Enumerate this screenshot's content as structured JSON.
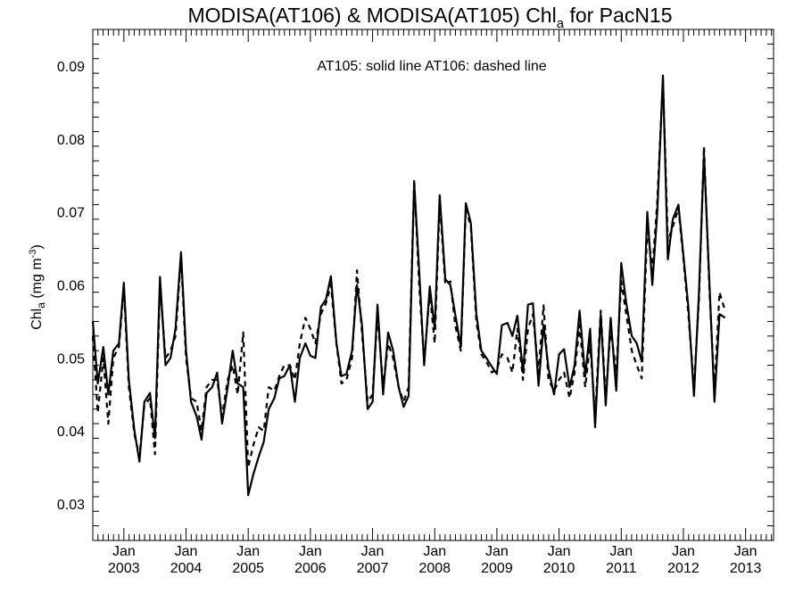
{
  "chart_data": {
    "type": "line",
    "title": {
      "main": "MODISA(AT106) & MODISA(AT105)  Chl",
      "subscript": "a",
      "suffix": " for PacN15"
    },
    "annotation": "AT105: solid line   AT106: dashed line",
    "ylabel": {
      "base": "Chl",
      "subscript": "a",
      "unit": " (mg m",
      "superscript": "-3",
      "close": ")"
    },
    "xlabel": "",
    "xlim": [
      2002.5,
      2013.45
    ],
    "ylim": [
      0.025,
      0.095
    ],
    "y_ticks": [
      "0.03",
      "0.04",
      "0.05",
      "0.06",
      "0.07",
      "0.08",
      "0.09"
    ],
    "x_ticks": [
      {
        "month": "Jan",
        "year": "2003",
        "x": 2003
      },
      {
        "month": "Jan",
        "year": "2004",
        "x": 2004
      },
      {
        "month": "Jan",
        "year": "2005",
        "x": 2005
      },
      {
        "month": "Jan",
        "year": "2006",
        "x": 2006
      },
      {
        "month": "Jan",
        "year": "2007",
        "x": 2007
      },
      {
        "month": "Jan",
        "year": "2008",
        "x": 2008
      },
      {
        "month": "Jan",
        "year": "2009",
        "x": 2009
      },
      {
        "month": "Jan",
        "year": "2010",
        "x": 2010
      },
      {
        "month": "Jan",
        "year": "2011",
        "x": 2011
      },
      {
        "month": "Jan",
        "year": "2012",
        "x": 2012
      },
      {
        "month": "Jan",
        "year": "2013",
        "x": 2013
      }
    ],
    "grid": false,
    "series": [
      {
        "name": "AT105",
        "style": "solid",
        "color": "#000000",
        "points": [
          [
            2002.5,
            0.055
          ],
          [
            2002.58,
            0.0465
          ],
          [
            2002.67,
            0.0515
          ],
          [
            2002.75,
            0.045
          ],
          [
            2002.83,
            0.051
          ],
          [
            2002.92,
            0.052
          ],
          [
            2003.0,
            0.0603
          ],
          [
            2003.08,
            0.047
          ],
          [
            2003.17,
            0.04
          ],
          [
            2003.25,
            0.0358
          ],
          [
            2003.33,
            0.044
          ],
          [
            2003.42,
            0.0452
          ],
          [
            2003.5,
            0.039
          ],
          [
            2003.58,
            0.0611
          ],
          [
            2003.67,
            0.049
          ],
          [
            2003.75,
            0.05
          ],
          [
            2003.83,
            0.054
          ],
          [
            2003.92,
            0.0645
          ],
          [
            2004.0,
            0.051
          ],
          [
            2004.08,
            0.044
          ],
          [
            2004.17,
            0.042
          ],
          [
            2004.25,
            0.0388
          ],
          [
            2004.33,
            0.0452
          ],
          [
            2004.42,
            0.046
          ],
          [
            2004.5,
            0.048
          ],
          [
            2004.58,
            0.041
          ],
          [
            2004.67,
            0.046
          ],
          [
            2004.75,
            0.051
          ],
          [
            2004.83,
            0.0465
          ],
          [
            2004.92,
            0.046
          ],
          [
            2005.0,
            0.0312
          ],
          [
            2005.08,
            0.034
          ],
          [
            2005.17,
            0.0365
          ],
          [
            2005.25,
            0.0385
          ],
          [
            2005.33,
            0.043
          ],
          [
            2005.42,
            0.0445
          ],
          [
            2005.5,
            0.0472
          ],
          [
            2005.58,
            0.0475
          ],
          [
            2005.67,
            0.049
          ],
          [
            2005.75,
            0.044
          ],
          [
            2005.83,
            0.05
          ],
          [
            2005.92,
            0.052
          ],
          [
            2006.0,
            0.0503
          ],
          [
            2006.08,
            0.05
          ],
          [
            2006.17,
            0.057
          ],
          [
            2006.25,
            0.058
          ],
          [
            2006.33,
            0.0612
          ],
          [
            2006.42,
            0.052
          ],
          [
            2006.5,
            0.0475
          ],
          [
            2006.58,
            0.0478
          ],
          [
            2006.67,
            0.051
          ],
          [
            2006.75,
            0.06
          ],
          [
            2006.83,
            0.0545
          ],
          [
            2006.92,
            0.043
          ],
          [
            2007.0,
            0.044
          ],
          [
            2007.08,
            0.0573
          ],
          [
            2007.17,
            0.045
          ],
          [
            2007.25,
            0.0535
          ],
          [
            2007.33,
            0.051
          ],
          [
            2007.42,
            0.046
          ],
          [
            2007.5,
            0.0433
          ],
          [
            2007.58,
            0.0448
          ],
          [
            2007.67,
            0.074
          ],
          [
            2007.75,
            0.062
          ],
          [
            2007.83,
            0.049
          ],
          [
            2007.92,
            0.0598
          ],
          [
            2008.0,
            0.054
          ],
          [
            2008.08,
            0.0723
          ],
          [
            2008.17,
            0.0608
          ],
          [
            2008.25,
            0.06
          ],
          [
            2008.33,
            0.056
          ],
          [
            2008.42,
            0.0515
          ],
          [
            2008.5,
            0.0712
          ],
          [
            2008.58,
            0.0685
          ],
          [
            2008.67,
            0.056
          ],
          [
            2008.75,
            0.051
          ],
          [
            2008.83,
            0.05
          ],
          [
            2008.92,
            0.0488
          ],
          [
            2009.0,
            0.0478
          ],
          [
            2009.08,
            0.0545
          ],
          [
            2009.17,
            0.0548
          ],
          [
            2009.25,
            0.053
          ],
          [
            2009.33,
            0.0558
          ],
          [
            2009.42,
            0.048
          ],
          [
            2009.5,
            0.0573
          ],
          [
            2009.58,
            0.0575
          ],
          [
            2009.67,
            0.0462
          ],
          [
            2009.75,
            0.0545
          ],
          [
            2009.83,
            0.0485
          ],
          [
            2009.92,
            0.045
          ],
          [
            2010.0,
            0.0505
          ],
          [
            2010.08,
            0.0512
          ],
          [
            2010.17,
            0.046
          ],
          [
            2010.25,
            0.049
          ],
          [
            2010.33,
            0.0565
          ],
          [
            2010.42,
            0.0475
          ],
          [
            2010.5,
            0.054
          ],
          [
            2010.58,
            0.0405
          ],
          [
            2010.67,
            0.056
          ],
          [
            2010.75,
            0.0435
          ],
          [
            2010.83,
            0.0555
          ],
          [
            2010.92,
            0.0455
          ],
          [
            2011.0,
            0.063
          ],
          [
            2011.08,
            0.0575
          ],
          [
            2011.17,
            0.053
          ],
          [
            2011.25,
            0.052
          ],
          [
            2011.33,
            0.0495
          ],
          [
            2011.42,
            0.07
          ],
          [
            2011.5,
            0.06
          ],
          [
            2011.58,
            0.07
          ],
          [
            2011.67,
            0.0887
          ],
          [
            2011.75,
            0.0635
          ],
          [
            2011.83,
            0.069
          ],
          [
            2011.92,
            0.071
          ],
          [
            2012.0,
            0.064
          ],
          [
            2012.08,
            0.057
          ],
          [
            2012.17,
            0.0448
          ],
          [
            2012.25,
            0.059
          ],
          [
            2012.33,
            0.078
          ],
          [
            2012.42,
            0.06
          ],
          [
            2012.5,
            0.044
          ],
          [
            2012.58,
            0.056
          ],
          [
            2012.67,
            0.0555
          ]
        ]
      },
      {
        "name": "AT106",
        "style": "dashed",
        "color": "#000000",
        "points": [
          [
            2002.5,
            0.053
          ],
          [
            2002.58,
            0.0425
          ],
          [
            2002.67,
            0.05
          ],
          [
            2002.75,
            0.041
          ],
          [
            2002.83,
            0.05
          ],
          [
            2002.92,
            0.0515
          ],
          [
            2003.0,
            0.0595
          ],
          [
            2003.08,
            0.046
          ],
          [
            2003.17,
            0.0395
          ],
          [
            2003.25,
            0.0365
          ],
          [
            2003.33,
            0.0435
          ],
          [
            2003.42,
            0.0445
          ],
          [
            2003.5,
            0.0368
          ],
          [
            2003.58,
            0.06
          ],
          [
            2003.67,
            0.05
          ],
          [
            2003.75,
            0.051
          ],
          [
            2003.83,
            0.053
          ],
          [
            2003.92,
            0.0638
          ],
          [
            2004.0,
            0.05
          ],
          [
            2004.08,
            0.0445
          ],
          [
            2004.17,
            0.044
          ],
          [
            2004.25,
            0.04
          ],
          [
            2004.33,
            0.046
          ],
          [
            2004.42,
            0.047
          ],
          [
            2004.5,
            0.047
          ],
          [
            2004.58,
            0.042
          ],
          [
            2004.67,
            0.047
          ],
          [
            2004.75,
            0.049
          ],
          [
            2004.83,
            0.045
          ],
          [
            2004.92,
            0.0535
          ],
          [
            2005.0,
            0.035
          ],
          [
            2005.08,
            0.038
          ],
          [
            2005.17,
            0.0405
          ],
          [
            2005.25,
            0.04
          ],
          [
            2005.33,
            0.046
          ],
          [
            2005.42,
            0.0455
          ],
          [
            2005.5,
            0.0475
          ],
          [
            2005.58,
            0.049
          ],
          [
            2005.67,
            0.049
          ],
          [
            2005.75,
            0.047
          ],
          [
            2005.83,
            0.052
          ],
          [
            2005.92,
            0.0555
          ],
          [
            2006.0,
            0.054
          ],
          [
            2006.08,
            0.052
          ],
          [
            2006.17,
            0.056
          ],
          [
            2006.25,
            0.0575
          ],
          [
            2006.33,
            0.06
          ],
          [
            2006.42,
            0.052
          ],
          [
            2006.5,
            0.0465
          ],
          [
            2006.58,
            0.047
          ],
          [
            2006.67,
            0.05
          ],
          [
            2006.75,
            0.062
          ],
          [
            2006.83,
            0.0535
          ],
          [
            2006.92,
            0.044
          ],
          [
            2007.0,
            0.045
          ],
          [
            2007.08,
            0.056
          ],
          [
            2007.17,
            0.046
          ],
          [
            2007.25,
            0.052
          ],
          [
            2007.33,
            0.05
          ],
          [
            2007.42,
            0.046
          ],
          [
            2007.5,
            0.044
          ],
          [
            2007.58,
            0.046
          ],
          [
            2007.67,
            0.0745
          ],
          [
            2007.75,
            0.06
          ],
          [
            2007.83,
            0.0495
          ],
          [
            2007.92,
            0.059
          ],
          [
            2008.0,
            0.052
          ],
          [
            2008.08,
            0.0715
          ],
          [
            2008.17,
            0.06
          ],
          [
            2008.25,
            0.0605
          ],
          [
            2008.33,
            0.0545
          ],
          [
            2008.42,
            0.051
          ],
          [
            2008.5,
            0.0705
          ],
          [
            2008.58,
            0.068
          ],
          [
            2008.67,
            0.055
          ],
          [
            2008.75,
            0.0505
          ],
          [
            2008.83,
            0.0495
          ],
          [
            2008.92,
            0.048
          ],
          [
            2009.0,
            0.0485
          ],
          [
            2009.08,
            0.0505
          ],
          [
            2009.17,
            0.05
          ],
          [
            2009.25,
            0.048
          ],
          [
            2009.33,
            0.054
          ],
          [
            2009.42,
            0.047
          ],
          [
            2009.5,
            0.054
          ],
          [
            2009.58,
            0.056
          ],
          [
            2009.67,
            0.048
          ],
          [
            2009.75,
            0.0572
          ],
          [
            2009.83,
            0.047
          ],
          [
            2009.92,
            0.0455
          ],
          [
            2010.0,
            0.047
          ],
          [
            2010.08,
            0.048
          ],
          [
            2010.17,
            0.0445
          ],
          [
            2010.25,
            0.048
          ],
          [
            2010.33,
            0.0545
          ],
          [
            2010.42,
            0.046
          ],
          [
            2010.5,
            0.052
          ],
          [
            2010.58,
            0.042
          ],
          [
            2010.67,
            0.0565
          ],
          [
            2010.75,
            0.0445
          ],
          [
            2010.83,
            0.054
          ],
          [
            2010.92,
            0.048
          ],
          [
            2011.0,
            0.0605
          ],
          [
            2011.08,
            0.056
          ],
          [
            2011.17,
            0.051
          ],
          [
            2011.25,
            0.049
          ],
          [
            2011.33,
            0.0472
          ],
          [
            2011.42,
            0.068
          ],
          [
            2011.5,
            0.062
          ],
          [
            2011.58,
            0.0715
          ],
          [
            2011.67,
            0.0883
          ],
          [
            2011.75,
            0.066
          ],
          [
            2011.83,
            0.068
          ],
          [
            2011.92,
            0.0705
          ],
          [
            2012.0,
            0.0635
          ],
          [
            2012.08,
            0.056
          ],
          [
            2012.17,
            0.046
          ],
          [
            2012.25,
            0.058
          ],
          [
            2012.33,
            0.079
          ],
          [
            2012.42,
            0.059
          ],
          [
            2012.5,
            0.0455
          ],
          [
            2012.58,
            0.059
          ],
          [
            2012.67,
            0.0565
          ]
        ]
      }
    ]
  }
}
